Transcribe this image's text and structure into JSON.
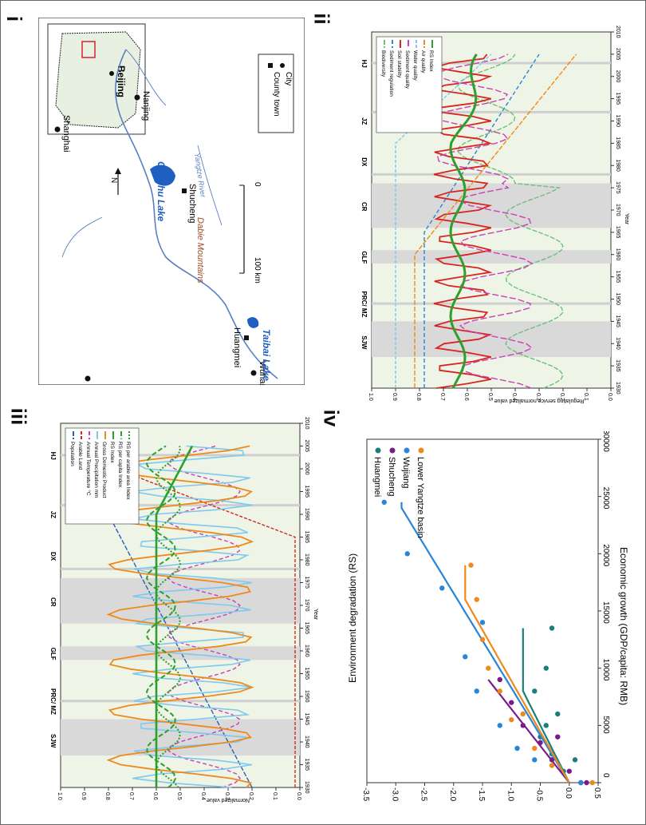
{
  "panels": {
    "i": {
      "numeral": "i",
      "cities": [
        "Beijing",
        "Shanghai",
        "Nanjing",
        "Shucheng",
        "Huangmei",
        "Wuhan"
      ],
      "lakes": [
        "Chaohu Lake",
        "Taibai Lake"
      ],
      "mountains": "Dabie Mountains",
      "river": "Yangtze River",
      "north": "N",
      "scale": [
        "0",
        "100 km"
      ],
      "legend": {
        "city": "City",
        "county": "County town"
      }
    },
    "ii": {
      "numeral": "ii",
      "ylabel": "Regulating service normalized value",
      "xlabel": "Year",
      "yticks": [
        "0.0",
        "0.1",
        "0.2",
        "0.3",
        "0.4",
        "0.5",
        "0.6",
        "0.7",
        "0.8",
        "0.9",
        "1.0"
      ],
      "xticks": [
        "1930",
        "1935",
        "1940",
        "1945",
        "1950",
        "1955",
        "1960",
        "1965",
        "1970",
        "1975",
        "1980",
        "1985",
        "1990",
        "1995",
        "2000",
        "2005",
        "2010"
      ],
      "events": [
        "SJW",
        "PRC/\nMZ",
        "GLF",
        "CR",
        "DX",
        "JZ",
        "HJ"
      ],
      "legend": [
        "Biodiversity",
        "Sediment regulation",
        "Soil stability",
        "Sediment quality",
        "Water quality",
        "Air quality",
        "RS Index"
      ]
    },
    "iii": {
      "numeral": "iii",
      "ylabel": "Normalized value",
      "xlabel": "Year",
      "yticks": [
        "0.0",
        "0.1",
        "0.2",
        "0.3",
        "0.4",
        "0.5",
        "0.6",
        "0.7",
        "0.8",
        "0.9",
        "1.0"
      ],
      "xticks": [
        "1930",
        "1935",
        "1940",
        "1945",
        "1950",
        "1955",
        "1960",
        "1965",
        "1970",
        "1975",
        "1980",
        "1985",
        "1990",
        "1995",
        "2000",
        "2005",
        "2010"
      ],
      "events": [
        "SJW",
        "PRC/\nMZ",
        "GLF",
        "CR",
        "DX",
        "JZ",
        "HJ"
      ],
      "legend": [
        "Population",
        "Arable Land",
        "Annual Temperature °C",
        "Annual Precipitation mm",
        "Gross Domestic Product",
        "RS Index",
        "RS per capita Index",
        "RS per arable area Index"
      ]
    },
    "iv": {
      "numeral": "iv",
      "ylabel": "Environment degradation (RS)",
      "xlabel": "Economic growth (GDP/capita: RMB)",
      "yticks": [
        "-3.5",
        "-3.0",
        "-2.5",
        "-2.0",
        "-1.5",
        "-1.0",
        "-0.5",
        "0.0",
        "0.5"
      ],
      "xticks": [
        "0",
        "5000",
        "10000",
        "15000",
        "20000",
        "25000",
        "30000"
      ],
      "legend": [
        "Huangmei",
        "Shucheng",
        "Wujiang",
        "Lower Yangtze basin"
      ]
    }
  },
  "colors": {
    "huangmei": "#1a7f7a",
    "shucheng": "#7a1a8c",
    "wujiang": "#2a84d8",
    "lower": "#ee8a1c",
    "rs": "#2e9e2e",
    "event_band": "#d9d9d9",
    "lake": "#1f5fbf",
    "river": "#5a7fc0"
  }
}
